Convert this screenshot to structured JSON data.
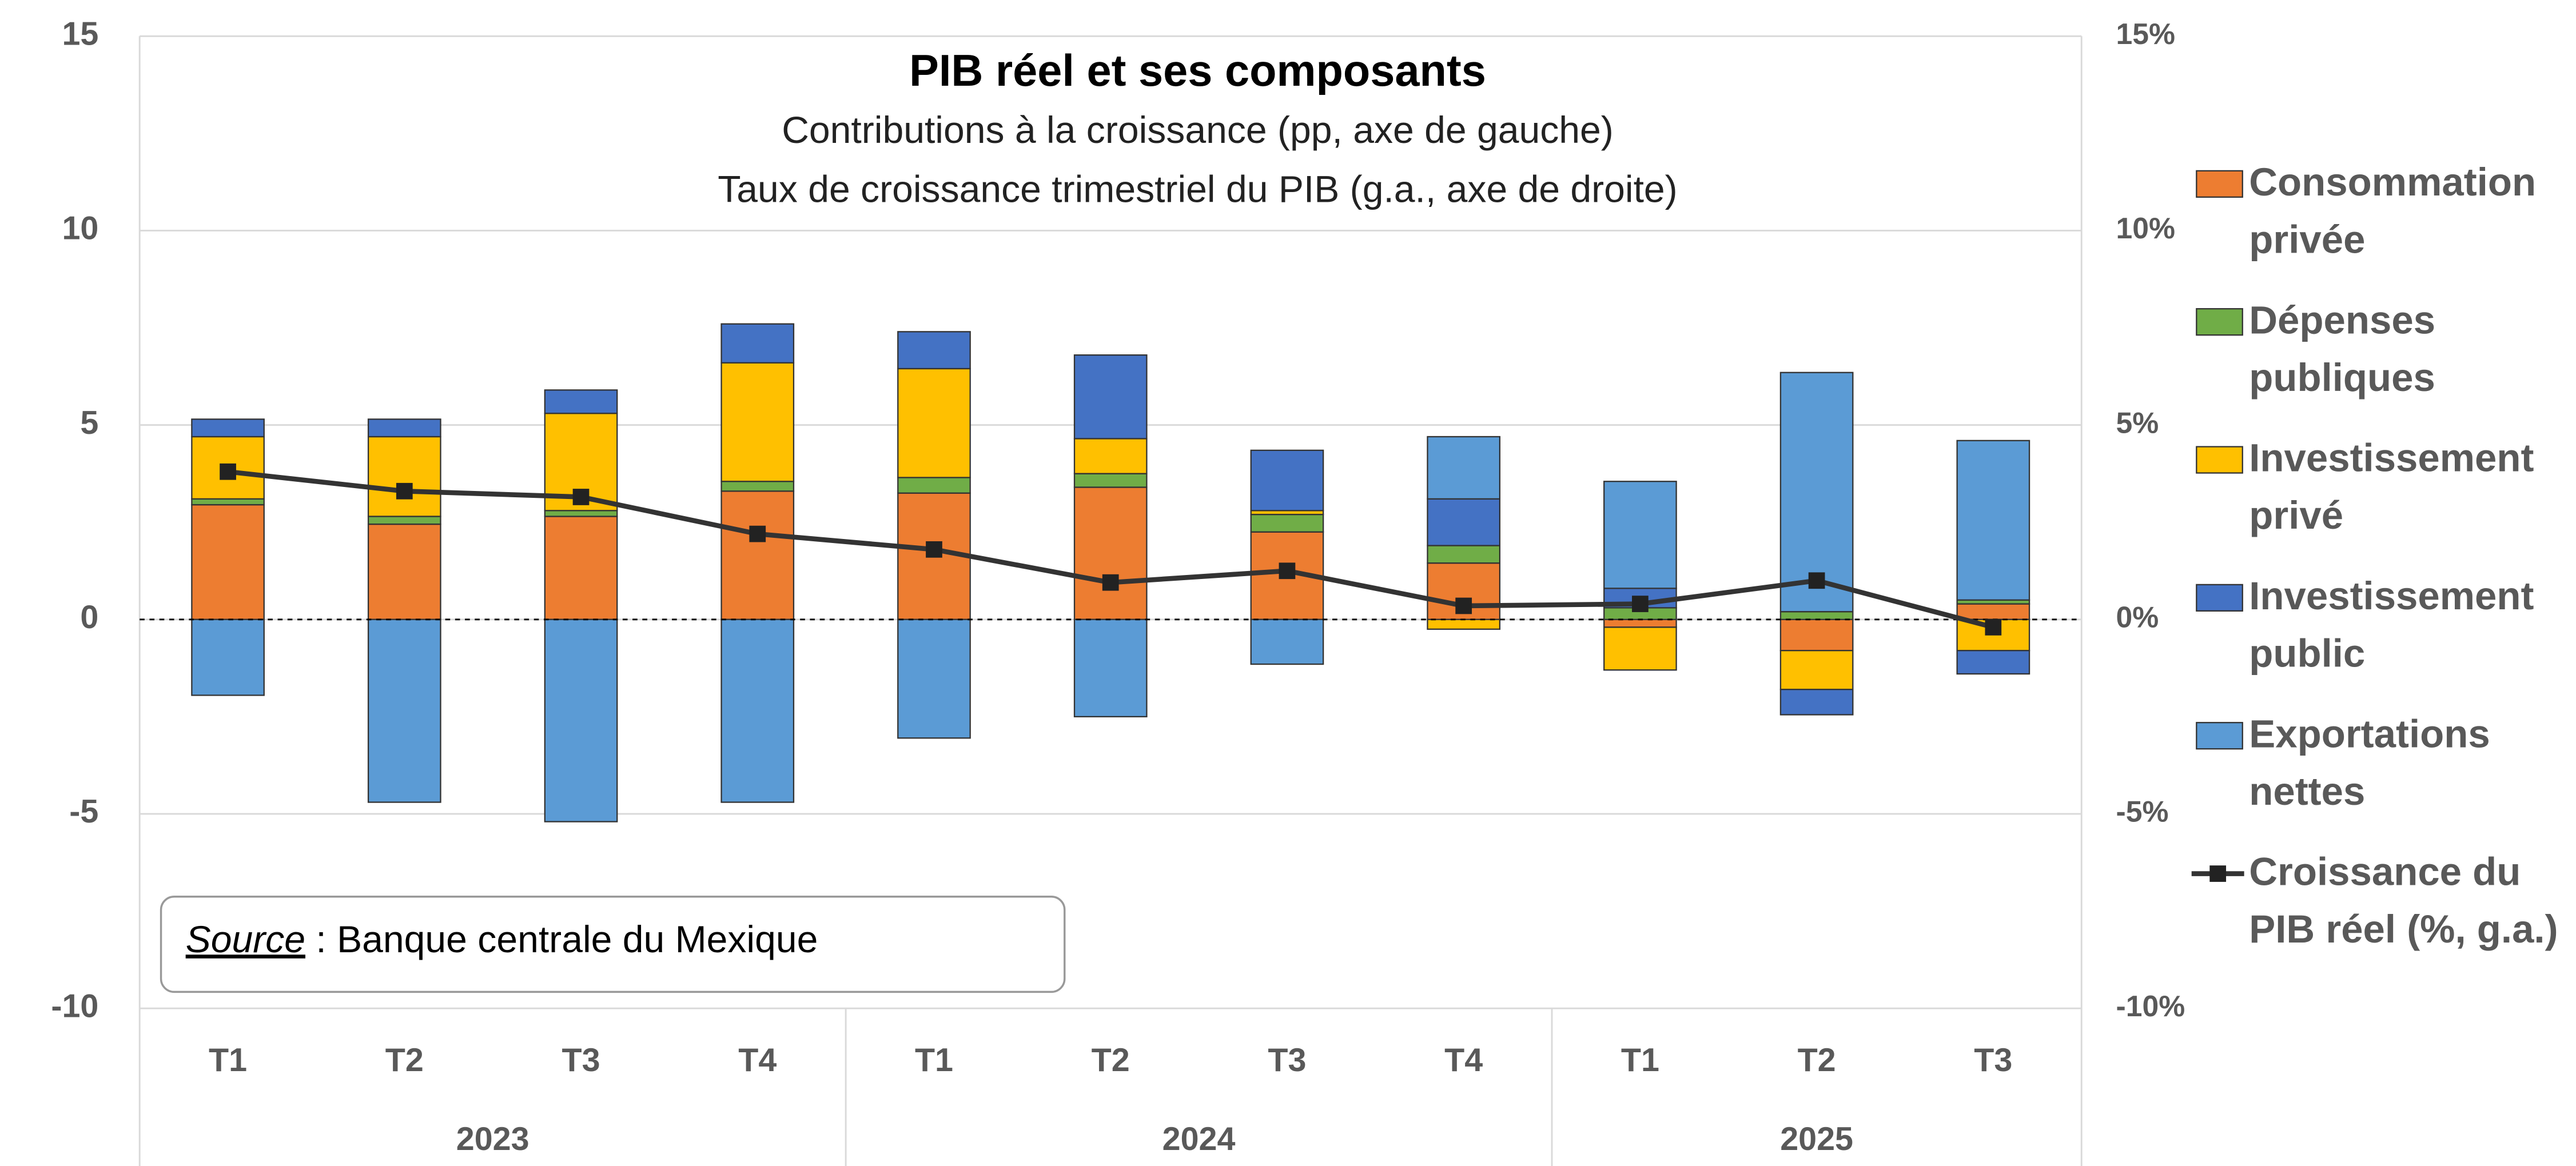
{
  "chart_data": {
    "type": "stacked-bar-line",
    "title": "PIB réel et ses composants",
    "subtitle": [
      "Contributions à la croissance (pp, axe de gauche)",
      "Taux de croissance trimestriel du PIB (g.a., axe de droite)"
    ],
    "categories": [
      "T1",
      "T2",
      "T3",
      "T4",
      "T1",
      "T2",
      "T3",
      "T4",
      "T1",
      "T2",
      "T3"
    ],
    "category_groups": [
      {
        "label": "2023",
        "count": 4
      },
      {
        "label": "2024",
        "count": 4
      },
      {
        "label": "2025",
        "count": 3
      }
    ],
    "series": [
      {
        "name": "Consommation privée",
        "color": "#ED7D31",
        "values": [
          2.95,
          2.45,
          2.65,
          3.3,
          3.25,
          3.4,
          2.25,
          1.45,
          -0.2,
          -0.8,
          0.4
        ]
      },
      {
        "name": "Dépenses publiques",
        "color": "#70AD47",
        "values": [
          0.15,
          0.2,
          0.15,
          0.25,
          0.4,
          0.35,
          0.45,
          0.45,
          0.3,
          0.2,
          0.1
        ]
      },
      {
        "name": "Investissement privé",
        "color": "#FFC000",
        "values": [
          1.6,
          2.05,
          2.5,
          3.05,
          2.8,
          0.9,
          0.1,
          -0.25,
          -1.1,
          -1.0,
          -0.8
        ]
      },
      {
        "name": "Investissement public",
        "color": "#4472C4",
        "values": [
          0.45,
          0.45,
          0.6,
          1.0,
          0.95,
          2.15,
          1.55,
          1.2,
          0.5,
          -0.65,
          -0.6
        ]
      },
      {
        "name": "Exportations nettes",
        "color": "#5B9BD5",
        "values": [
          -1.95,
          -4.7,
          -5.2,
          -4.7,
          -3.05,
          -2.5,
          -1.15,
          1.6,
          2.75,
          6.15,
          4.1
        ]
      },
      {
        "name": "Croissance du PIB réel (%, g.a.)",
        "color": "#333333",
        "axis": "y2",
        "type": "line",
        "values": [
          3.8,
          3.3,
          3.15,
          2.2,
          1.8,
          0.95,
          1.25,
          0.35,
          0.4,
          1.0,
          -0.2
        ]
      }
    ],
    "ylim": [
      -10,
      15
    ],
    "yticks": [
      -10,
      -5,
      0,
      5,
      10,
      15
    ],
    "y2lim": [
      -10,
      15
    ],
    "y2ticks": [
      {
        "value": -10,
        "label": "-10%"
      },
      {
        "value": -5,
        "label": "-5%"
      },
      {
        "value": 0,
        "label": "0%"
      },
      {
        "value": 5,
        "label": "5%"
      },
      {
        "value": 10,
        "label": "10%"
      },
      {
        "value": 15,
        "label": "15%"
      }
    ],
    "grid": true,
    "legend": "right",
    "source": {
      "label": "Source",
      "text": " : Banque centrale du Mexique"
    }
  }
}
